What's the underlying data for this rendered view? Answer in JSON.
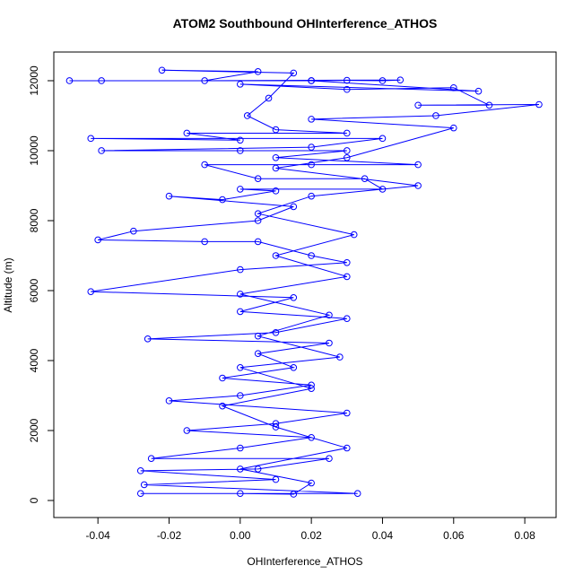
{
  "chart_data": {
    "type": "line",
    "title": "ATOM2 Southbound OHInterference_ATHOS",
    "xlabel": "OHInterference_ATHOS",
    "ylabel": "Altitude (m)",
    "x": [
      -0.048,
      -0.039,
      0.02,
      0.03,
      0.04,
      0.045,
      -0.01,
      0.005,
      -0.022,
      0.015,
      0.008,
      0.002,
      0.01,
      0.03,
      -0.015,
      0.0,
      -0.042,
      0.04,
      0.02,
      -0.039,
      0.0,
      0.03,
      0.01,
      0.05,
      0.02,
      -0.01,
      0.005,
      0.035,
      0.04,
      0.0,
      0.01,
      -0.005,
      -0.02,
      0.015,
      0.005,
      -0.03,
      -0.04,
      -0.01,
      0.005,
      0.02,
      0.03,
      0.0,
      -0.042,
      0.015,
      0.0,
      0.03,
      0.01,
      -0.026,
      0.025,
      0.005,
      0.015,
      -0.005,
      0.02,
      0.0,
      -0.02,
      0.03,
      0.01,
      -0.015,
      0.02,
      0.0,
      -0.025,
      0.025,
      0.005,
      -0.028,
      0.01,
      -0.027,
      0.033,
      -0.028,
      0.0,
      0.015,
      0.02,
      0.0,
      0.03,
      0.01,
      -0.005,
      0.02,
      0.0,
      0.028,
      0.005,
      0.025,
      0.0,
      0.03,
      0.01,
      0.032,
      0.005,
      0.02,
      0.05,
      0.01,
      0.03,
      0.06,
      0.02,
      0.055,
      0.084,
      0.05,
      0.07,
      0.06,
      0.03,
      0.0,
      0.067,
      0.02
    ],
    "series": [
      {
        "name": "OHInterference_ATHOS",
        "color": "#0000ff",
        "values": [
          12000,
          12000,
          12000,
          12010,
          12000,
          12020,
          12000,
          12260,
          12300,
          12220,
          11500,
          11000,
          10600,
          10500,
          10500,
          10300,
          10350,
          10350,
          10100,
          10000,
          10000,
          10000,
          9800,
          9600,
          9600,
          9600,
          9200,
          9200,
          8900,
          8900,
          8850,
          8600,
          8700,
          8400,
          8000,
          7700,
          7450,
          7400,
          7400,
          7000,
          6800,
          6600,
          5970,
          5800,
          5400,
          5200,
          4800,
          4620,
          4500,
          4200,
          3800,
          3500,
          3300,
          3000,
          2850,
          2500,
          2200,
          2000,
          1800,
          1500,
          1200,
          1200,
          900,
          850,
          600,
          450,
          200,
          200,
          200,
          180,
          500,
          900,
          1500,
          2100,
          2700,
          3200,
          3800,
          4100,
          4700,
          5300,
          5900,
          6400,
          7000,
          7600,
          8200,
          8700,
          9000,
          9500,
          9800,
          10650,
          10900,
          11000,
          11320,
          11300,
          11300,
          11800,
          11750,
          11900,
          11700,
          12000
        ]
      }
    ],
    "xlim": [
      -0.0524,
      0.0888
    ],
    "ylim": [
      -487,
      12820
    ],
    "xticks": [
      -0.04,
      -0.02,
      {
        "value": 0,
        "label": "0.00"
      },
      0.02,
      0.04,
      0.06,
      0.08
    ],
    "yticks": [
      0,
      2000,
      4000,
      6000,
      8000,
      10000,
      12000
    ]
  }
}
